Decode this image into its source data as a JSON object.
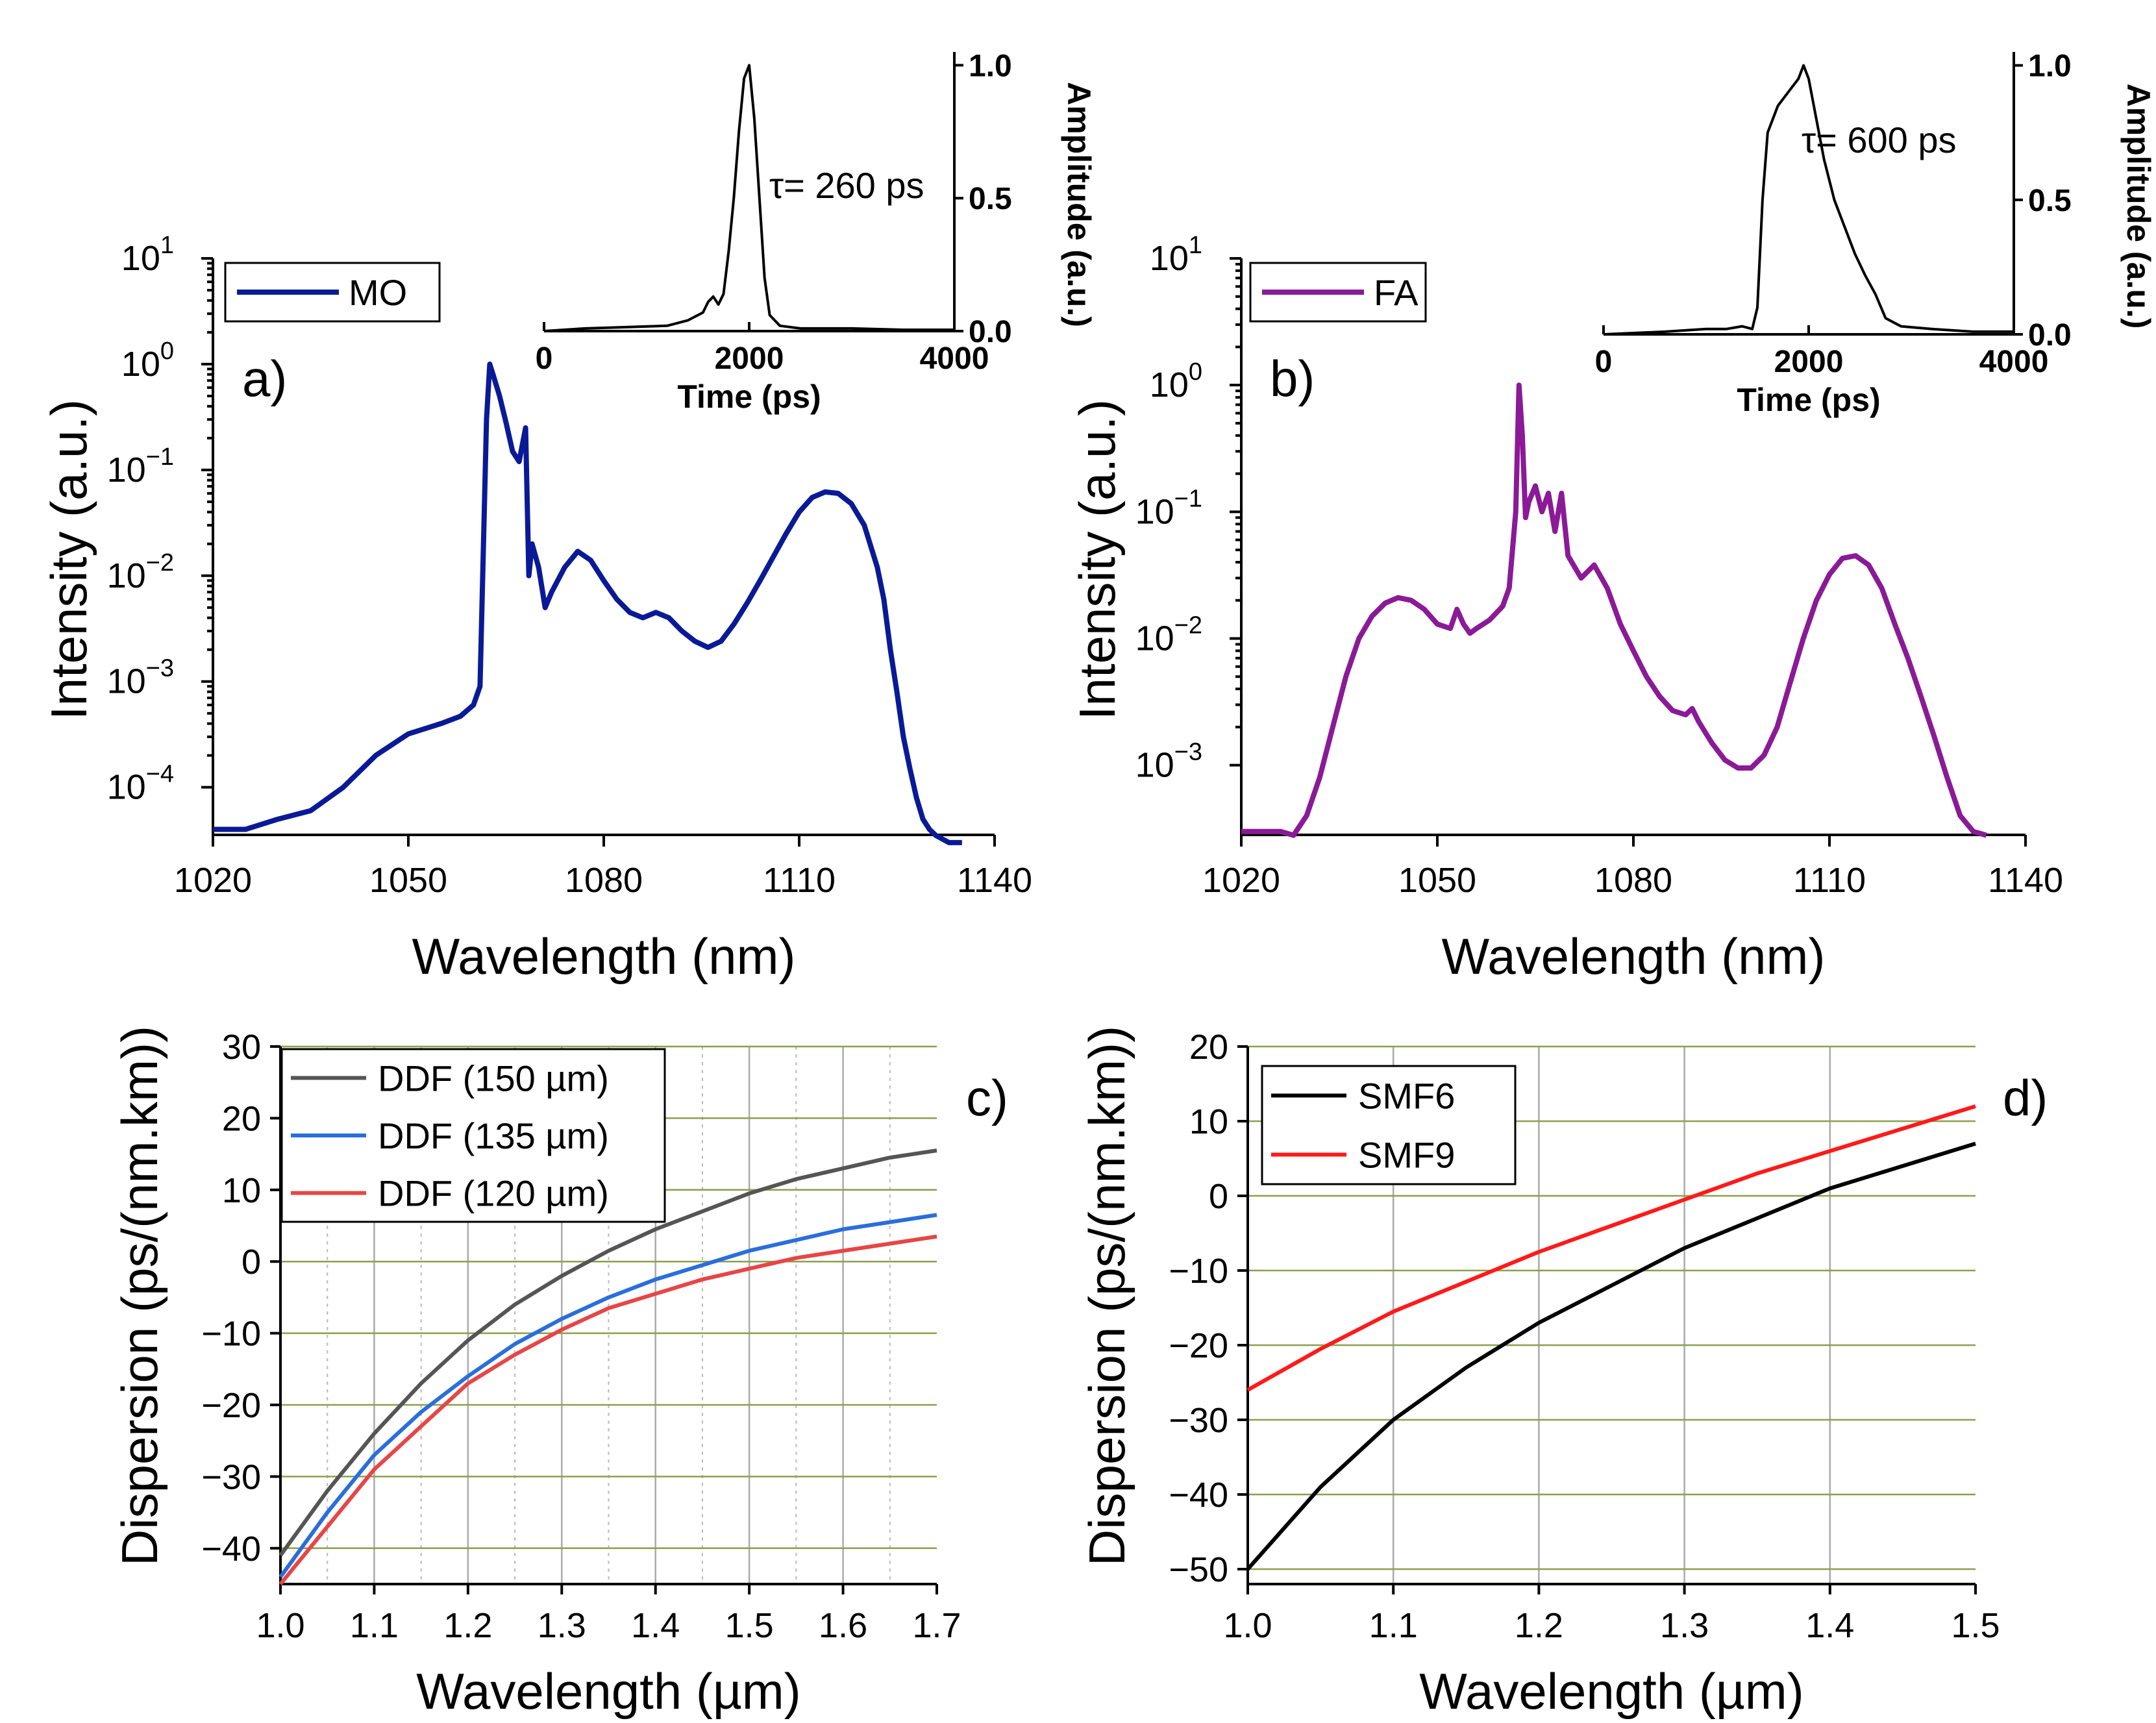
{
  "chart_data": [
    {
      "id": "a",
      "type": "line",
      "panel_label": "a)",
      "xlabel": "Wavelength (nm)",
      "ylabel": "Intensity (a.u.)",
      "xlim": [
        1020,
        1140
      ],
      "ylim_log10": [
        -4.45,
        1.0
      ],
      "yscale": "log",
      "xticks": [
        1020,
        1050,
        1080,
        1110,
        1140
      ],
      "yticks_exp": [
        1,
        0,
        -1,
        -2,
        -3,
        -4
      ],
      "legend": [
        "MO"
      ],
      "color": "#0a1a96",
      "series": [
        {
          "name": "MO",
          "x": [
            1020,
            1025,
            1030,
            1035,
            1040,
            1045,
            1050,
            1055,
            1058,
            1060,
            1061,
            1062,
            1062.5,
            1063,
            1064,
            1065,
            1066,
            1067,
            1068,
            1068.5,
            1069,
            1070,
            1071,
            1072,
            1074,
            1076,
            1078,
            1080,
            1082,
            1084,
            1086,
            1088,
            1090,
            1092,
            1094,
            1096,
            1098,
            1100,
            1102,
            1104,
            1106,
            1108,
            1110,
            1112,
            1114,
            1116,
            1118,
            1120,
            1122,
            1123,
            1124,
            1125,
            1126,
            1127,
            1128,
            1129,
            1130,
            1131,
            1133,
            1135
          ],
          "y": [
            4e-05,
            4e-05,
            5e-05,
            6e-05,
            0.0001,
            0.0002,
            0.00032,
            0.0004,
            0.00047,
            0.0006,
            0.0009,
            0.3,
            1.0,
            0.8,
            0.5,
            0.28,
            0.15,
            0.12,
            0.25,
            0.01,
            0.02,
            0.012,
            0.005,
            0.007,
            0.012,
            0.017,
            0.014,
            0.009,
            0.006,
            0.0045,
            0.004,
            0.0045,
            0.004,
            0.003,
            0.0024,
            0.0021,
            0.0024,
            0.0035,
            0.0055,
            0.009,
            0.015,
            0.025,
            0.04,
            0.055,
            0.062,
            0.06,
            0.048,
            0.03,
            0.012,
            0.006,
            0.002,
            0.0008,
            0.0003,
            0.00015,
            8e-05,
            5e-05,
            4e-05,
            3.5e-05,
            3e-05,
            3e-05
          ]
        }
      ],
      "inset": {
        "xlabel": "Time (ps)",
        "ylabel": "Amplitude (a.u.)",
        "xlim": [
          0,
          4000
        ],
        "ylim": [
          0,
          1.05
        ],
        "xticks": [
          0,
          2000,
          4000
        ],
        "yticks": [
          0.0,
          0.5,
          1.0
        ],
        "tick_labels_x": [
          "0",
          "2000",
          "4000"
        ],
        "tick_labels_y": [
          "0.0",
          "0.5",
          "1.0"
        ],
        "annotation": "τ= 260 ps",
        "x": [
          0,
          400,
          800,
          1200,
          1400,
          1550,
          1600,
          1650,
          1700,
          1750,
          1800,
          1850,
          1900,
          1950,
          2000,
          2050,
          2100,
          2150,
          2200,
          2300,
          2500,
          3000,
          3500,
          4000
        ],
        "y": [
          0.0,
          0.01,
          0.015,
          0.02,
          0.04,
          0.07,
          0.11,
          0.13,
          0.1,
          0.14,
          0.3,
          0.5,
          0.75,
          0.95,
          1.0,
          0.8,
          0.5,
          0.2,
          0.06,
          0.02,
          0.01,
          0.01,
          0.005,
          0.005
        ]
      }
    },
    {
      "id": "b",
      "type": "line",
      "panel_label": "b)",
      "xlabel": "Wavelength (nm)",
      "ylabel": "Intensity (a.u.)",
      "xlim": [
        1020,
        1140
      ],
      "ylim_log10": [
        -3.55,
        1.0
      ],
      "yscale": "log",
      "xticks": [
        1020,
        1050,
        1080,
        1110,
        1140
      ],
      "yticks_exp": [
        1,
        0,
        -1,
        -2,
        -3
      ],
      "legend": [
        "FA"
      ],
      "color": "#8a1a96",
      "series": [
        {
          "name": "FA",
          "x": [
            1020,
            1023,
            1026,
            1028,
            1030,
            1032,
            1034,
            1036,
            1038,
            1040,
            1042,
            1044,
            1046,
            1048,
            1050,
            1052,
            1053,
            1054,
            1055,
            1056,
            1058,
            1060,
            1061,
            1062,
            1062.5,
            1063,
            1063.5,
            1064,
            1065,
            1066,
            1067,
            1068,
            1069,
            1070,
            1072,
            1074,
            1076,
            1078,
            1080,
            1082,
            1084,
            1086,
            1088,
            1089,
            1090,
            1092,
            1094,
            1096,
            1098,
            1100,
            1102,
            1104,
            1106,
            1108,
            1110,
            1112,
            1114,
            1116,
            1118,
            1120,
            1122,
            1124,
            1126,
            1128,
            1130,
            1132,
            1134
          ],
          "y": [
            0.0003,
            0.0003,
            0.0003,
            0.00028,
            0.0004,
            0.0008,
            0.002,
            0.005,
            0.01,
            0.015,
            0.019,
            0.021,
            0.02,
            0.017,
            0.013,
            0.012,
            0.017,
            0.013,
            0.011,
            0.012,
            0.014,
            0.018,
            0.025,
            0.1,
            1.0,
            0.4,
            0.09,
            0.12,
            0.16,
            0.1,
            0.14,
            0.07,
            0.14,
            0.045,
            0.03,
            0.038,
            0.025,
            0.013,
            0.008,
            0.005,
            0.0035,
            0.0027,
            0.0025,
            0.0028,
            0.0022,
            0.0015,
            0.0011,
            0.00095,
            0.00095,
            0.0012,
            0.002,
            0.0045,
            0.01,
            0.02,
            0.032,
            0.043,
            0.045,
            0.038,
            0.025,
            0.013,
            0.007,
            0.0035,
            0.0017,
            0.0008,
            0.0004,
            0.0003,
            0.00028
          ]
        }
      ],
      "inset": {
        "xlabel": "Time (ps)",
        "ylabel": "Amplitude (a.u.)",
        "xlim": [
          0,
          4000
        ],
        "ylim": [
          0,
          1.05
        ],
        "xticks": [
          0,
          2000,
          4000
        ],
        "yticks": [
          0.0,
          0.5,
          1.0
        ],
        "tick_labels_x": [
          "0",
          "2000",
          "4000"
        ],
        "tick_labels_y": [
          "0.0",
          "0.5",
          "1.0"
        ],
        "annotation": "τ= 600 ps",
        "x": [
          0,
          600,
          1000,
          1200,
          1350,
          1450,
          1500,
          1550,
          1600,
          1700,
          1800,
          1900,
          1950,
          2000,
          2050,
          2150,
          2250,
          2350,
          2450,
          2550,
          2650,
          2750,
          2900,
          3200,
          3600,
          4000
        ],
        "y": [
          0.0,
          0.01,
          0.02,
          0.02,
          0.03,
          0.02,
          0.1,
          0.5,
          0.75,
          0.85,
          0.9,
          0.95,
          1.0,
          0.95,
          0.85,
          0.65,
          0.5,
          0.4,
          0.3,
          0.22,
          0.15,
          0.06,
          0.03,
          0.02,
          0.01,
          0.01
        ]
      }
    },
    {
      "id": "c",
      "type": "line",
      "panel_label": "c)",
      "xlabel": "Wavelength (µm)",
      "ylabel": "Dispersion (ps/(nm.km))",
      "xlim": [
        1.0,
        1.7
      ],
      "ylim": [
        -45,
        30
      ],
      "xticks": [
        1.0,
        1.1,
        1.2,
        1.3,
        1.4,
        1.5,
        1.6,
        1.7
      ],
      "xtick_labels": [
        "1.0",
        "1.1",
        "1.2",
        "1.3",
        "1.4",
        "1.5",
        "1.6",
        "1.7"
      ],
      "yticks": [
        30,
        20,
        10,
        0,
        -10,
        -20,
        -30,
        -40
      ],
      "ytick_labels": [
        "30",
        "20",
        "10",
        "0",
        "−10",
        "−20",
        "−30",
        "−40"
      ],
      "legend": [
        "DDF (150 µm)",
        "DDF (135 µm)",
        "DDF (120 µm)"
      ],
      "series": [
        {
          "name": "DDF (150 µm)",
          "color": "#555555",
          "x": [
            1.0,
            1.05,
            1.1,
            1.15,
            1.2,
            1.25,
            1.3,
            1.35,
            1.4,
            1.45,
            1.5,
            1.55,
            1.6,
            1.65,
            1.7
          ],
          "y": [
            -41,
            -32,
            -24,
            -17,
            -11,
            -6,
            -2,
            1.5,
            4.5,
            7,
            9.5,
            11.5,
            13,
            14.5,
            15.5
          ]
        },
        {
          "name": "DDF (135 µm)",
          "color": "#2a6edc",
          "x": [
            1.0,
            1.05,
            1.1,
            1.15,
            1.2,
            1.25,
            1.3,
            1.35,
            1.4,
            1.45,
            1.5,
            1.55,
            1.6,
            1.65,
            1.7
          ],
          "y": [
            -44,
            -35,
            -27,
            -21,
            -16,
            -11.5,
            -8,
            -5,
            -2.5,
            -0.5,
            1.5,
            3,
            4.5,
            5.5,
            6.5
          ]
        },
        {
          "name": "DDF (120 µm)",
          "color": "#e64646",
          "x": [
            1.0,
            1.05,
            1.1,
            1.15,
            1.2,
            1.25,
            1.3,
            1.35,
            1.4,
            1.45,
            1.5,
            1.55,
            1.6,
            1.65,
            1.7
          ],
          "y": [
            -45,
            -37,
            -29,
            -23,
            -17,
            -13,
            -9.5,
            -6.5,
            -4.5,
            -2.5,
            -1,
            0.5,
            1.5,
            2.5,
            3.5
          ]
        }
      ]
    },
    {
      "id": "d",
      "type": "line",
      "panel_label": "d)",
      "xlabel": "Wavelength (µm)",
      "ylabel": "Dispersion (ps/(nm.km))",
      "xlim": [
        1.0,
        1.5
      ],
      "ylim": [
        -52,
        20
      ],
      "xticks": [
        1.0,
        1.1,
        1.2,
        1.3,
        1.4,
        1.5
      ],
      "xtick_labels": [
        "1.0",
        "1.1",
        "1.2",
        "1.3",
        "1.4",
        "1.5"
      ],
      "yticks": [
        20,
        10,
        0,
        -10,
        -20,
        -30,
        -40,
        -50
      ],
      "ytick_labels": [
        "20",
        "10",
        "0",
        "−10",
        "−20",
        "−30",
        "−40",
        "−50"
      ],
      "legend": [
        "SMF6",
        "SMF9"
      ],
      "series": [
        {
          "name": "SMF6",
          "color": "#000000",
          "x": [
            1.0,
            1.05,
            1.1,
            1.15,
            1.2,
            1.25,
            1.3,
            1.35,
            1.4,
            1.45,
            1.5
          ],
          "y": [
            -50,
            -39,
            -30,
            -23,
            -17,
            -12,
            -7,
            -3,
            1,
            4,
            7
          ]
        },
        {
          "name": "SMF9",
          "color": "#ff1a1a",
          "x": [
            1.0,
            1.05,
            1.1,
            1.15,
            1.2,
            1.25,
            1.3,
            1.35,
            1.4,
            1.45,
            1.5
          ],
          "y": [
            -26,
            -20.5,
            -15.5,
            -11.5,
            -7.5,
            -4,
            -0.5,
            3,
            6,
            9,
            12
          ]
        }
      ]
    }
  ]
}
